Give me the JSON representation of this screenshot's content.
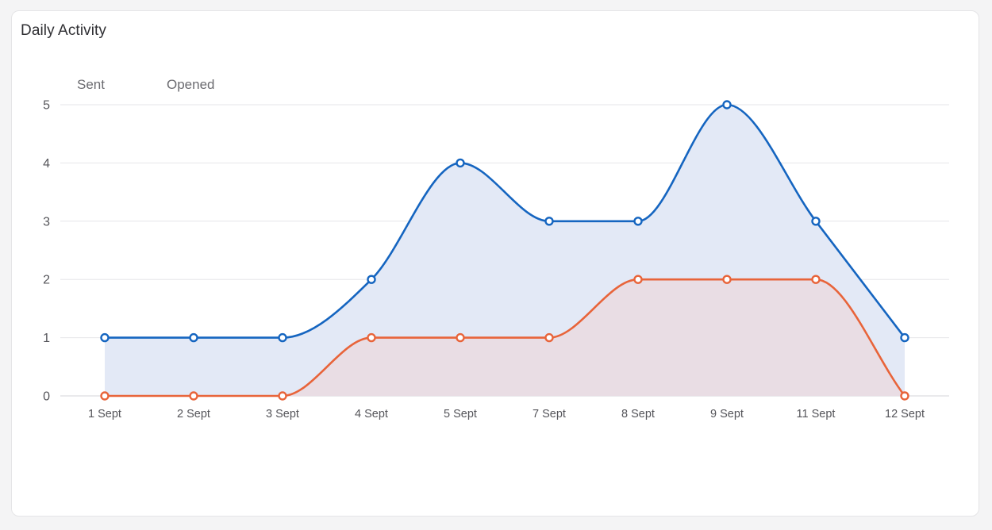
{
  "card": {
    "title": "Daily Activity"
  },
  "chart_data": {
    "type": "area",
    "categories": [
      "1 Sept",
      "2 Sept",
      "3 Sept",
      "4 Sept",
      "5 Sept",
      "7 Sept",
      "8 Sept",
      "9 Sept",
      "11 Sept",
      "12 Sept"
    ],
    "series": [
      {
        "name": "Sent",
        "values": [
          1,
          1,
          1,
          2,
          4,
          3,
          3,
          5,
          3,
          1
        ],
        "color": "#1565c0",
        "fill": "#e3e9f6"
      },
      {
        "name": "Opened",
        "values": [
          0,
          0,
          0,
          1,
          1,
          1,
          2,
          2,
          2,
          0
        ],
        "color": "#e8643a",
        "fill": "#eadbe1"
      }
    ],
    "yticks": [
      "0",
      "1",
      "2",
      "3",
      "4",
      "5"
    ],
    "ylim": [
      0,
      5
    ],
    "grid": true,
    "legend": "top-left",
    "title": "Daily Activity"
  }
}
